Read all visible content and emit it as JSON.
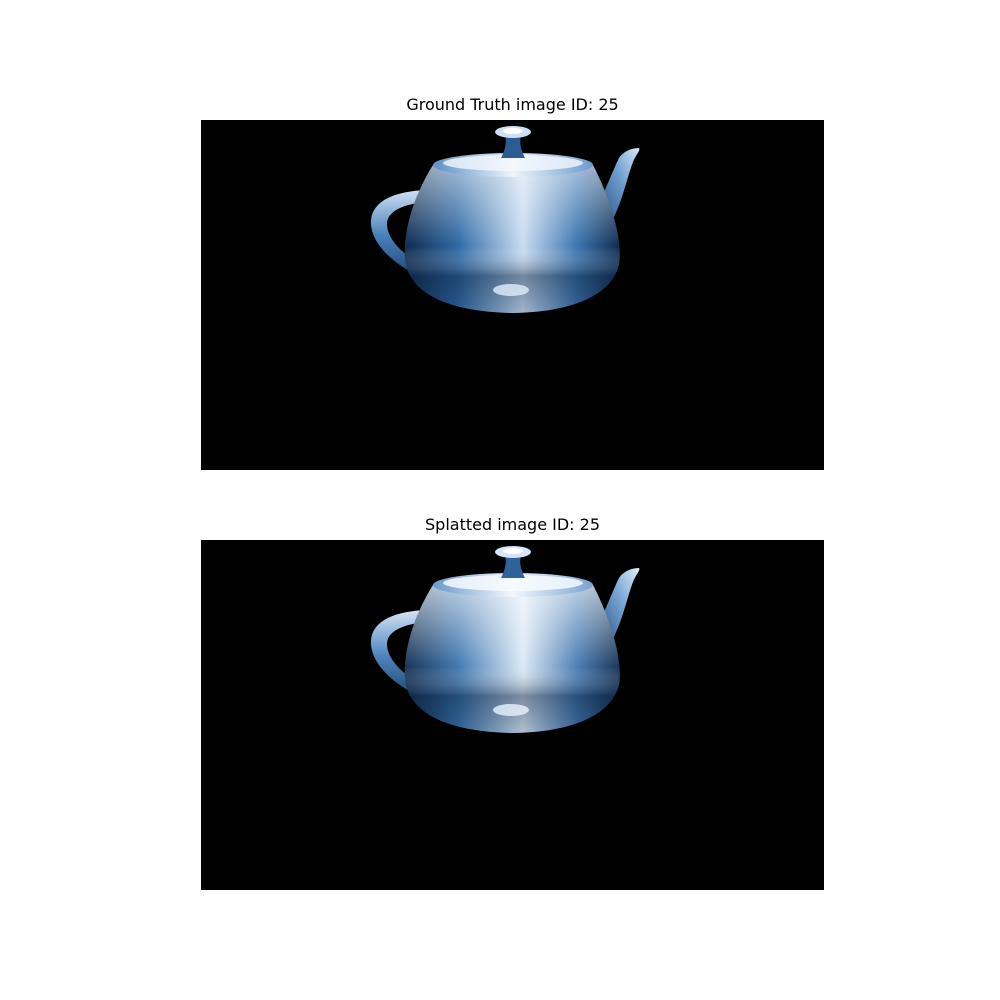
{
  "figure": {
    "panels": [
      {
        "title": "Ground Truth image ID: 25",
        "image_icon": "teapot-icon",
        "background_color": "#000000",
        "object_color": "#2b5e95",
        "highlight_color": "#d6e6f7"
      },
      {
        "title": "Splatted image ID: 25",
        "image_icon": "teapot-icon",
        "background_color": "#000000",
        "object_color": "#2b5e95",
        "highlight_color": "#e6f0fa"
      }
    ]
  }
}
